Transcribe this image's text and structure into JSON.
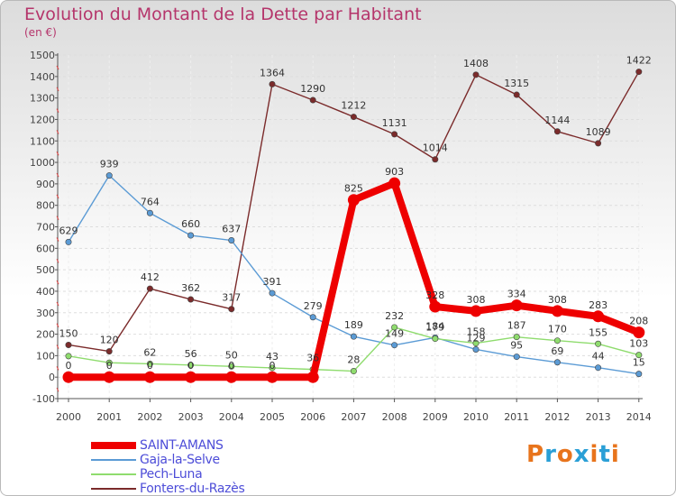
{
  "title": "Evolution du Montant de la Dette par Habitant",
  "unit": "(en €)",
  "logo": {
    "text": "Proxiti",
    "colors": [
      "#e8741c",
      "#2a9fd6",
      "#e8741c",
      "#2a9fd6",
      "#e8741c",
      "#2a9fd6",
      "#e8741c"
    ]
  },
  "chart_data": {
    "type": "line",
    "title": "Evolution du Montant de la Dette par Habitant",
    "ylabel": "(en €)",
    "xlabel": "",
    "ylim": [
      -100,
      1500
    ],
    "yticks": [
      -100,
      0,
      100,
      200,
      300,
      400,
      500,
      600,
      700,
      800,
      900,
      1000,
      1100,
      1200,
      1300,
      1400,
      1500
    ],
    "grid": true,
    "legend": "bottom-left",
    "x": [
      "2000",
      "2001",
      "2002",
      "2003",
      "2004",
      "2005",
      "2006",
      "2007",
      "2008",
      "2009",
      "2010",
      "2011",
      "2012",
      "2013",
      "2014"
    ],
    "series": [
      {
        "name": "SAINT-AMANS",
        "color": "#ee0000",
        "values": [
          0,
          0,
          0,
          0,
          0,
          0,
          0,
          825,
          903,
          328,
          308,
          334,
          308,
          283,
          208
        ]
      },
      {
        "name": "Gaja-la-Selve",
        "color": "#5b9bd5",
        "values": [
          629,
          939,
          764,
          660,
          637,
          391,
          279,
          189,
          149,
          184,
          129,
          95,
          69,
          44,
          15
        ]
      },
      {
        "name": "Pech-Luna",
        "color": "#8fdc6e",
        "values": [
          98,
          67,
          62,
          56,
          50,
          43,
          36,
          28,
          232,
          179,
          158,
          187,
          170,
          155,
          103
        ]
      },
      {
        "name": "Fonters-du-Razès",
        "color": "#7b2b2b",
        "values": [
          150,
          120,
          412,
          362,
          317,
          1364,
          1290,
          1212,
          1131,
          1014,
          1408,
          1315,
          1144,
          1089,
          1422
        ]
      }
    ],
    "labels": [
      {
        "text": "0",
        "x": "2000",
        "y": 0
      },
      {
        "text": "0",
        "x": "2001",
        "y": 0
      },
      {
        "text": "0",
        "x": "2002",
        "y": 0
      },
      {
        "text": "0",
        "x": "2003",
        "y": 0
      },
      {
        "text": "0",
        "x": "2004",
        "y": 0
      },
      {
        "text": "0",
        "x": "2005",
        "y": 0
      },
      {
        "text": "825",
        "x": "2007",
        "y": 825
      },
      {
        "text": "903",
        "x": "2008",
        "y": 903
      },
      {
        "text": "328",
        "x": "2009",
        "y": 328
      },
      {
        "text": "308",
        "x": "2010",
        "y": 308
      },
      {
        "text": "334",
        "x": "2011",
        "y": 334
      },
      {
        "text": "308",
        "x": "2012",
        "y": 308
      },
      {
        "text": "283",
        "x": "2013",
        "y": 283
      },
      {
        "text": "208",
        "x": "2014",
        "y": 208
      },
      {
        "text": "629",
        "x": "2000",
        "y": 629
      },
      {
        "text": "939",
        "x": "2001",
        "y": 939
      },
      {
        "text": "764",
        "x": "2002",
        "y": 764
      },
      {
        "text": "660",
        "x": "2003",
        "y": 660
      },
      {
        "text": "637",
        "x": "2004",
        "y": 637
      },
      {
        "text": "391",
        "x": "2005",
        "y": 391
      },
      {
        "text": "279",
        "x": "2006",
        "y": 279
      },
      {
        "text": "189",
        "x": "2007",
        "y": 189
      },
      {
        "text": "149",
        "x": "2008",
        "y": 149
      },
      {
        "text": "184",
        "x": "2009",
        "y": 184
      },
      {
        "text": "129",
        "x": "2010",
        "y": 129
      },
      {
        "text": "95",
        "x": "2011",
        "y": 95
      },
      {
        "text": "69",
        "x": "2012",
        "y": 69
      },
      {
        "text": "44",
        "x": "2013",
        "y": 44
      },
      {
        "text": "15",
        "x": "2014",
        "y": 15
      },
      {
        "text": "62",
        "x": "2002",
        "y": 62
      },
      {
        "text": "56",
        "x": "2003",
        "y": 56
      },
      {
        "text": "50",
        "x": "2004",
        "y": 50
      },
      {
        "text": "43",
        "x": "2005",
        "y": 43
      },
      {
        "text": "36",
        "x": "2006",
        "y": 36
      },
      {
        "text": "28",
        "x": "2007",
        "y": 28
      },
      {
        "text": "232",
        "x": "2008",
        "y": 232
      },
      {
        "text": "179",
        "x": "2009",
        "y": 179
      },
      {
        "text": "158",
        "x": "2010",
        "y": 158
      },
      {
        "text": "187",
        "x": "2011",
        "y": 187
      },
      {
        "text": "170",
        "x": "2012",
        "y": 170
      },
      {
        "text": "155",
        "x": "2013",
        "y": 155
      },
      {
        "text": "103",
        "x": "2014",
        "y": 103
      },
      {
        "text": "150",
        "x": "2000",
        "y": 150
      },
      {
        "text": "120",
        "x": "2001",
        "y": 120
      },
      {
        "text": "412",
        "x": "2002",
        "y": 412
      },
      {
        "text": "362",
        "x": "2003",
        "y": 362
      },
      {
        "text": "317",
        "x": "2004",
        "y": 317
      },
      {
        "text": "1364",
        "x": "2005",
        "y": 1364
      },
      {
        "text": "1290",
        "x": "2006",
        "y": 1290
      },
      {
        "text": "1212",
        "x": "2007",
        "y": 1212
      },
      {
        "text": "1131",
        "x": "2008",
        "y": 1131
      },
      {
        "text": "1014",
        "x": "2009",
        "y": 1014
      },
      {
        "text": "1408",
        "x": "2010",
        "y": 1408
      },
      {
        "text": "1315",
        "x": "2011",
        "y": 1315
      },
      {
        "text": "1144",
        "x": "2012",
        "y": 1144
      },
      {
        "text": "1089",
        "x": "2013",
        "y": 1089
      },
      {
        "text": "1422",
        "x": "2014",
        "y": 1422
      }
    ]
  }
}
